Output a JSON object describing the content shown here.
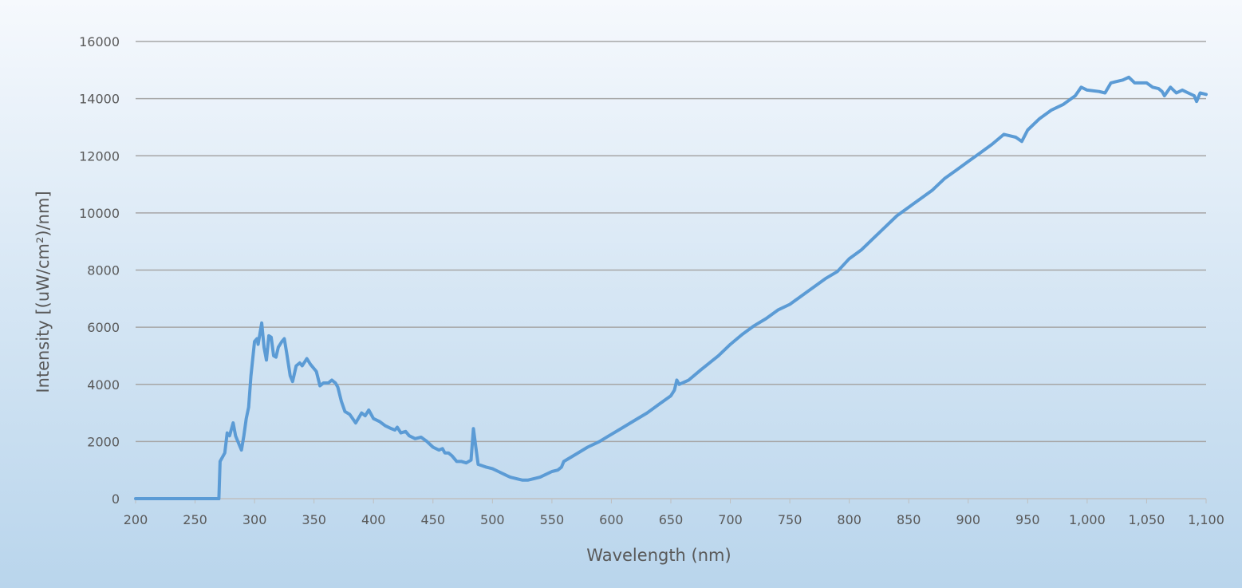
{
  "chart_data": {
    "type": "line",
    "title": "",
    "xlabel": "Wavelength (nm)",
    "ylabel": "Intensity [(uW/cm²)/nm]",
    "xlim": [
      200,
      1100
    ],
    "ylim": [
      0,
      16000
    ],
    "grid": "horizontal",
    "legend": "none",
    "line_color": "#5b9bd5",
    "x_ticks": [
      "200",
      "250",
      "300",
      "350",
      "400",
      "450",
      "500",
      "550",
      "600",
      "650",
      "700",
      "750",
      "800",
      "850",
      "900",
      "950",
      "1,000",
      "1,050",
      "1,100"
    ],
    "x_tick_values": [
      200,
      250,
      300,
      350,
      400,
      450,
      500,
      550,
      600,
      650,
      700,
      750,
      800,
      850,
      900,
      950,
      1000,
      1050,
      1100
    ],
    "y_ticks": [
      "0",
      "2000",
      "4000",
      "6000",
      "8000",
      "10000",
      "12000",
      "14000",
      "16000"
    ],
    "y_tick_values": [
      0,
      2000,
      4000,
      6000,
      8000,
      10000,
      12000,
      14000,
      16000
    ],
    "series": [
      {
        "name": "Intensity",
        "x": [
          200,
          270,
          271,
          275,
          277,
          279,
          282,
          284,
          287,
          289,
          291,
          293,
          295,
          297,
          300,
          302,
          303,
          306,
          308,
          310,
          312,
          314,
          316,
          318,
          320,
          323,
          325,
          327,
          330,
          332,
          335,
          338,
          340,
          344,
          347,
          350,
          352,
          355,
          358,
          362,
          365,
          368,
          370,
          373,
          376,
          380,
          385,
          390,
          393,
          396,
          400,
          405,
          410,
          415,
          418,
          420,
          423,
          427,
          430,
          435,
          440,
          445,
          450,
          455,
          458,
          460,
          463,
          466,
          470,
          474,
          478,
          482,
          484,
          486,
          488,
          495,
          500,
          505,
          510,
          515,
          520,
          525,
          530,
          535,
          540,
          545,
          550,
          555,
          558,
          560,
          570,
          580,
          590,
          600,
          610,
          620,
          630,
          640,
          650,
          653,
          655,
          657,
          665,
          675,
          690,
          700,
          710,
          720,
          730,
          740,
          750,
          760,
          770,
          780,
          790,
          800,
          810,
          820,
          830,
          840,
          850,
          860,
          870,
          880,
          890,
          900,
          910,
          920,
          930,
          940,
          945,
          950,
          960,
          970,
          980,
          990,
          995,
          1000,
          1010,
          1015,
          1020,
          1030,
          1035,
          1040,
          1050,
          1055,
          1060,
          1063,
          1065,
          1070,
          1075,
          1080,
          1085,
          1090,
          1092,
          1095,
          1100
        ],
        "y": [
          0,
          0,
          1300,
          1600,
          2300,
          2200,
          2650,
          2200,
          1900,
          1700,
          2200,
          2800,
          3200,
          4300,
          5500,
          5600,
          5400,
          6150,
          5300,
          4850,
          5700,
          5650,
          5000,
          4950,
          5300,
          5500,
          5600,
          5100,
          4300,
          4100,
          4650,
          4750,
          4650,
          4900,
          4700,
          4550,
          4450,
          3950,
          4050,
          4050,
          4150,
          4050,
          3900,
          3400,
          3050,
          2950,
          2650,
          3000,
          2900,
          3100,
          2800,
          2700,
          2550,
          2450,
          2400,
          2500,
          2300,
          2350,
          2200,
          2100,
          2150,
          2000,
          1800,
          1700,
          1750,
          1600,
          1600,
          1500,
          1300,
          1300,
          1250,
          1350,
          2450,
          1800,
          1200,
          1100,
          1050,
          950,
          850,
          750,
          700,
          650,
          650,
          700,
          750,
          850,
          950,
          1000,
          1100,
          1300,
          1550,
          1800,
          2000,
          2250,
          2500,
          2750,
          3000,
          3300,
          3600,
          3800,
          4150,
          4000,
          4150,
          4500,
          5000,
          5400,
          5750,
          6050,
          6300,
          6600,
          6800,
          7100,
          7400,
          7700,
          7950,
          8400,
          8700,
          9100,
          9500,
          9900,
          10200,
          10500,
          10800,
          11200,
          11500,
          11800,
          12100,
          12400,
          12750,
          12650,
          12500,
          12900,
          13300,
          13600,
          13800,
          14100,
          14400,
          14300,
          14250,
          14200,
          14550,
          14650,
          14750,
          14550,
          14550,
          14400,
          14350,
          14250,
          14100,
          14400,
          14200,
          14300,
          14200,
          14100,
          13900,
          14200,
          14150
        ]
      }
    ]
  }
}
